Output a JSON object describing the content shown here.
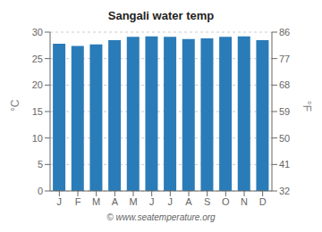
{
  "chart_data": {
    "type": "bar",
    "title": "Sangali water temp",
    "categories": [
      "J",
      "F",
      "M",
      "A",
      "M",
      "J",
      "J",
      "A",
      "S",
      "O",
      "N",
      "D"
    ],
    "values": [
      27.8,
      27.4,
      27.7,
      28.5,
      29.1,
      29.2,
      29.1,
      28.7,
      28.8,
      29.1,
      29.2,
      28.5
    ],
    "color": "#2a7cb8",
    "ylim": [
      0,
      30
    ],
    "yticks": [
      0,
      5,
      10,
      15,
      20,
      25,
      30
    ],
    "ylabel": "°C",
    "y2lim": [
      32,
      86
    ],
    "y2ticks": [
      32,
      41,
      50,
      59,
      68,
      77,
      86
    ],
    "y2label": "°F",
    "grid": true,
    "annotations": [
      "© www.seatemperature.org"
    ]
  }
}
